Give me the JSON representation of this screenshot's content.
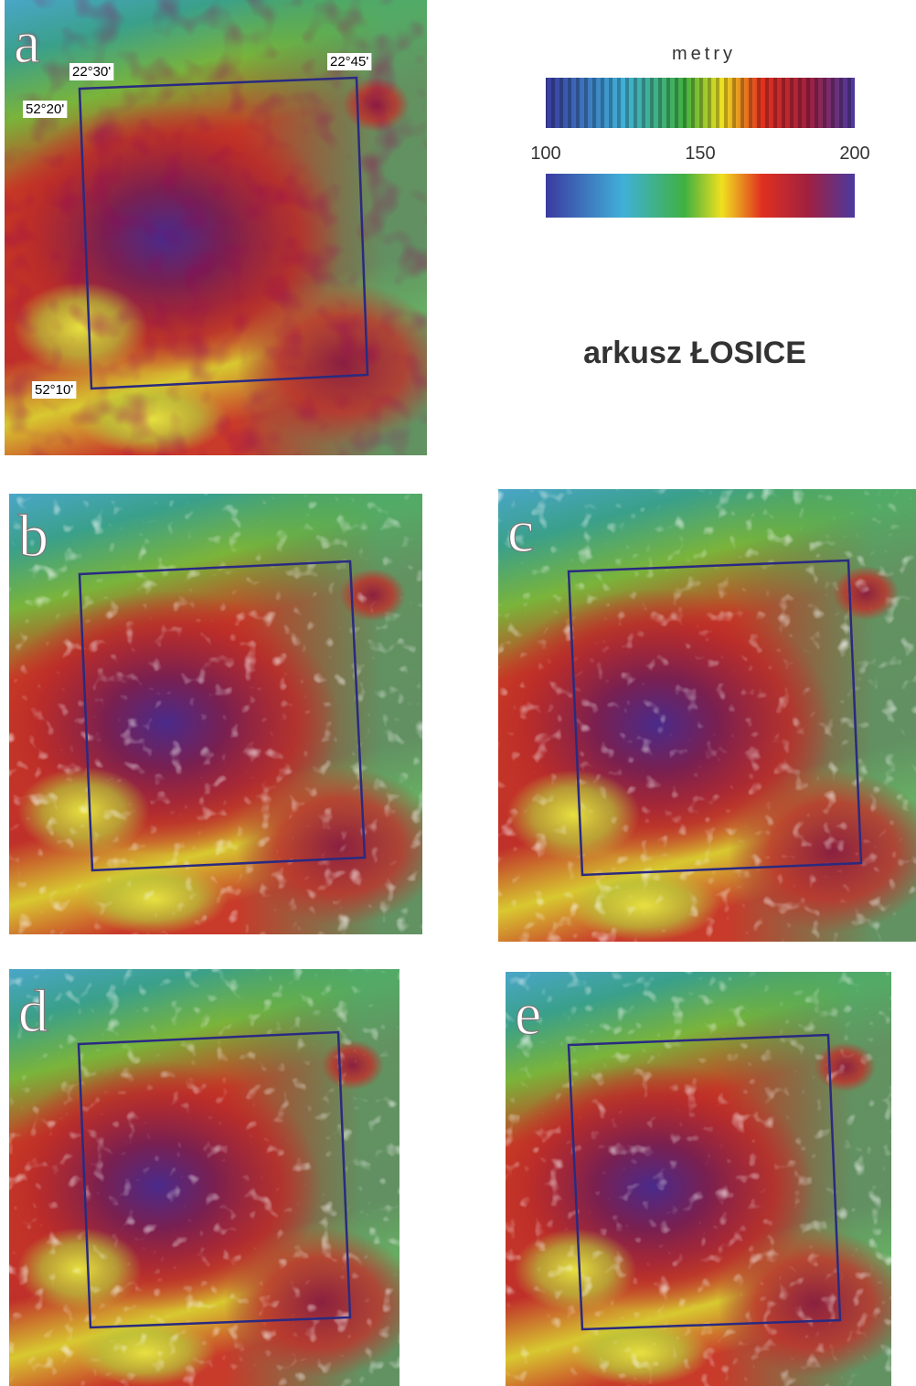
{
  "panels": [
    {
      "label": "a",
      "coordinates": [
        "22°30'",
        "22°45'",
        "52°20'",
        "52°10'"
      ]
    },
    {
      "label": "b"
    },
    {
      "label": "c"
    },
    {
      "label": "d"
    },
    {
      "label": "e"
    }
  ],
  "legend": {
    "unit": "metry",
    "ticks": [
      100,
      150,
      200
    ]
  },
  "title": "arkusz ŁOSICE"
}
